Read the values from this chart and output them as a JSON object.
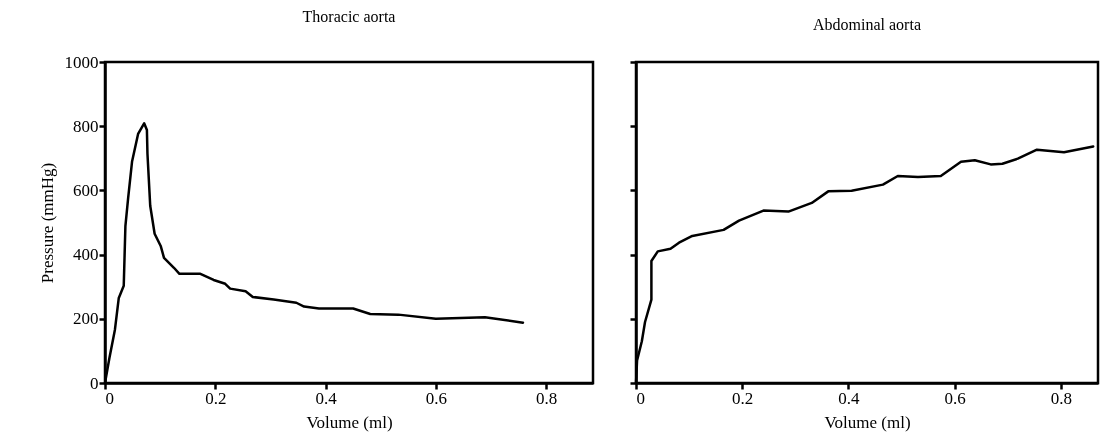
{
  "chart_data": [
    {
      "type": "line",
      "title": "Thoracic aorta",
      "xlabel": "Volume (ml)",
      "ylabel": "Pressure (mmHg)",
      "color": "#000000",
      "grid": false,
      "xlim": [
        0,
        0.885
      ],
      "xticks": [
        0,
        0.2,
        0.4,
        0.6,
        0.8
      ],
      "ylim": [
        0,
        1000
      ],
      "yticks": [
        0,
        200,
        400,
        600,
        800,
        1000
      ],
      "x": [
        0,
        0.008,
        0.018,
        0.025,
        0.034,
        0.037,
        0.042,
        0.049,
        0.06,
        0.071,
        0.076,
        0.077,
        0.082,
        0.09,
        0.101,
        0.107,
        0.125,
        0.135,
        0.173,
        0.197,
        0.218,
        0.227,
        0.255,
        0.268,
        0.306,
        0.347,
        0.361,
        0.388,
        0.45,
        0.481,
        0.532,
        0.6,
        0.689,
        0.758
      ],
      "values": [
        0,
        78,
        166,
        265,
        303,
        489,
        577,
        689,
        776,
        809,
        788,
        714,
        552,
        465,
        427,
        390,
        359,
        340,
        340,
        321,
        309,
        294,
        286,
        268,
        260,
        250,
        238,
        232,
        232,
        215,
        213,
        200,
        205,
        188
      ]
    },
    {
      "type": "line",
      "title": "Abdominal aorta",
      "xlabel": "Volume (ml)",
      "color": "#000000",
      "grid": false,
      "tick_labels": "x",
      "xlim": [
        0,
        0.87
      ],
      "xticks": [
        0,
        0.2,
        0.4,
        0.6,
        0.8
      ],
      "ylim": [
        0,
        1000
      ],
      "yticks": [
        0,
        200,
        400,
        600,
        800,
        1000
      ],
      "x": [
        0,
        0.002,
        0.011,
        0.017,
        0.029,
        0.029,
        0.041,
        0.065,
        0.081,
        0.106,
        0.165,
        0.194,
        0.24,
        0.287,
        0.331,
        0.362,
        0.406,
        0.465,
        0.493,
        0.531,
        0.574,
        0.612,
        0.638,
        0.668,
        0.69,
        0.719,
        0.755,
        0.806,
        0.861
      ],
      "values": [
        0,
        70,
        130,
        190,
        260,
        380,
        410,
        418,
        437,
        458,
        477,
        506,
        537,
        534,
        561,
        597,
        599,
        618,
        645,
        642,
        645,
        689,
        694,
        681,
        683,
        699,
        727,
        719,
        737
      ]
    }
  ]
}
